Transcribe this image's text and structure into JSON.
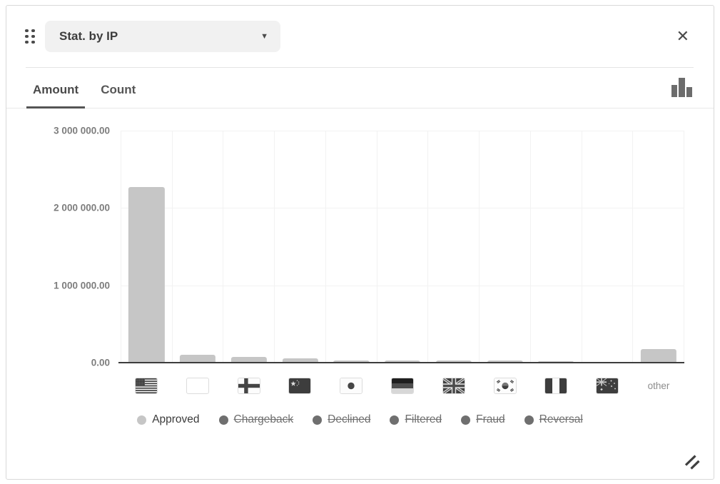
{
  "widget_title": "Stat. by IP",
  "icons": {
    "drag_handle": "dots-grid",
    "dropdown_caret": "▼",
    "close": "✕",
    "chart_type": "bar-chart",
    "resize_handle": "diagonal-grip"
  },
  "tabs": [
    {
      "label": "Amount",
      "active": true
    },
    {
      "label": "Count",
      "active": false
    }
  ],
  "chart_data": {
    "type": "bar",
    "title": "Stat. by IP",
    "active_tab": "Amount",
    "categories": [
      "US",
      "unknown",
      "FI",
      "CN",
      "JP",
      "DE",
      "GB",
      "KR",
      "NG",
      "AU",
      "other"
    ],
    "series": [
      {
        "name": "Approved",
        "color": "#c6c6c6",
        "values": [
          2270000,
          100000,
          72000,
          55000,
          25000,
          25000,
          25000,
          25000,
          22000,
          12000,
          175000
        ]
      }
    ],
    "ylim": [
      0,
      3000000
    ],
    "yticks": [
      {
        "value": 3000000,
        "label": "3 000 000.00"
      },
      {
        "value": 2000000,
        "label": "2 000 000.00"
      },
      {
        "value": 1000000,
        "label": "1 000 000.00"
      },
      {
        "value": 0,
        "label": "0.00"
      }
    ],
    "grid": true,
    "x_axis_label_type": "country-flags",
    "other_label": "other",
    "legend_position": "bottom",
    "legend": [
      {
        "label": "Approved",
        "disabled": false,
        "dot_color": "#c6c6c6"
      },
      {
        "label": "Chargeback",
        "disabled": true,
        "dot_color": "#6f6f6f"
      },
      {
        "label": "Declined",
        "disabled": true,
        "dot_color": "#6f6f6f"
      },
      {
        "label": "Filtered",
        "disabled": true,
        "dot_color": "#6f6f6f"
      },
      {
        "label": "Fraud",
        "disabled": true,
        "dot_color": "#6f6f6f"
      },
      {
        "label": "Reversal",
        "disabled": true,
        "dot_color": "#6f6f6f"
      }
    ]
  }
}
